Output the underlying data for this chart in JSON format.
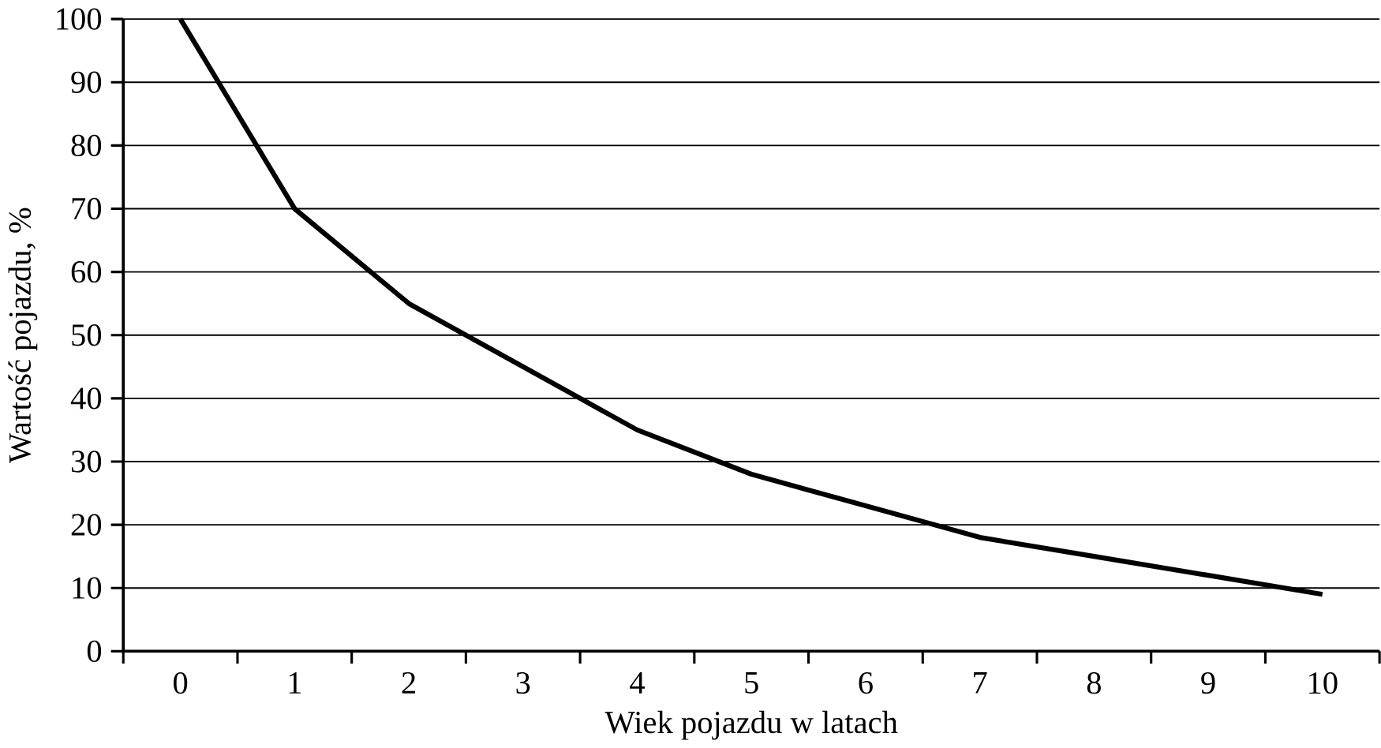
{
  "chart_data": {
    "type": "line",
    "xlabel": "Wiek pojazdu w latach",
    "ylabel": "Wartość pojazdu, %",
    "categories": [
      "0",
      "1",
      "2",
      "3",
      "4",
      "5",
      "6",
      "7",
      "8",
      "9",
      "10"
    ],
    "series": [
      {
        "color": "#000000",
        "values": [
          100,
          70,
          55,
          45,
          35,
          28,
          23,
          18,
          15,
          12,
          9
        ]
      }
    ],
    "ylim": [
      0,
      100
    ],
    "yticks": [
      0,
      10,
      20,
      30,
      40,
      50,
      60,
      70,
      80,
      90,
      100
    ],
    "grid": "y",
    "marker": "none",
    "line_style": "solid"
  }
}
